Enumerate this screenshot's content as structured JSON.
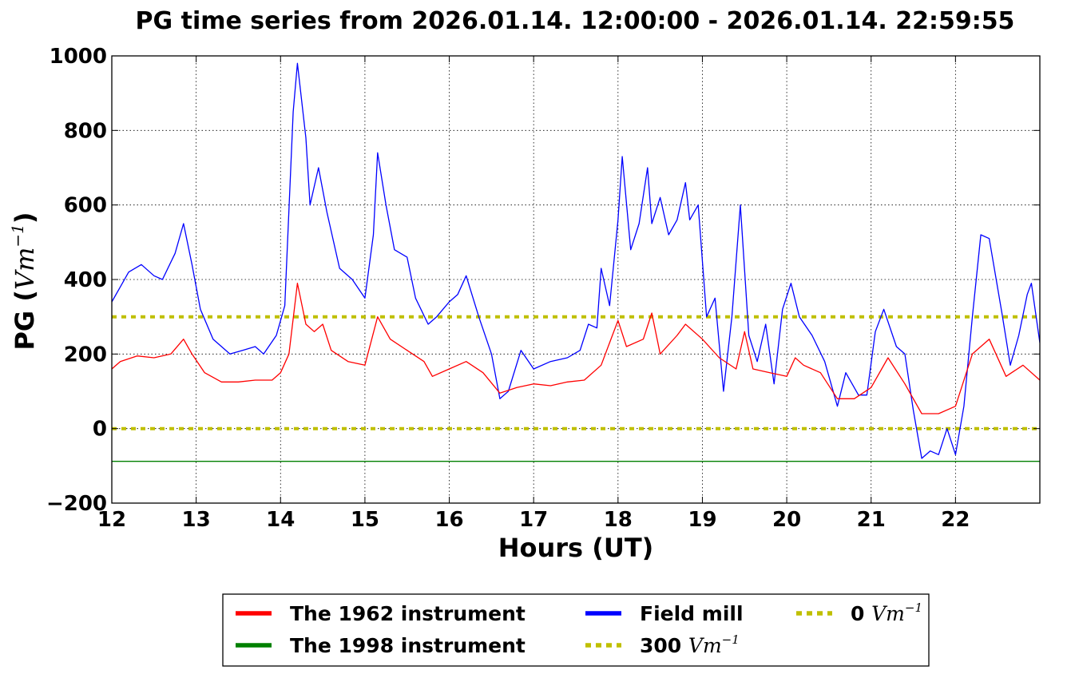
{
  "chart_data": {
    "type": "line",
    "title": "PG time series from 2026.01.14. 12:00:00 - 2026.01.14. 22:59:55",
    "xlabel": "Hours (UT)",
    "ylabel": "PG",
    "ylabel_unit": "Vm",
    "ylabel_exp": "−1",
    "xlim": [
      12,
      23
    ],
    "ylim": [
      -200,
      1000
    ],
    "xticks": [
      12,
      13,
      14,
      15,
      16,
      17,
      18,
      19,
      20,
      21,
      22
    ],
    "xtick_labels": [
      "12",
      "13",
      "14",
      "15",
      "16",
      "17",
      "18",
      "19",
      "20",
      "21",
      "22"
    ],
    "yticks": [
      -200,
      0,
      200,
      400,
      600,
      800,
      1000
    ],
    "ytick_labels": [
      "−200",
      "0",
      "200",
      "400",
      "600",
      "800",
      "1000"
    ],
    "grid": true,
    "legend_position": "bottom-center (below plot)",
    "series": [
      {
        "name": "The 1962 instrument",
        "color": "#ff0000",
        "x": [
          12.0,
          12.1,
          12.3,
          12.5,
          12.7,
          12.85,
          12.95,
          13.1,
          13.3,
          13.5,
          13.7,
          13.9,
          14.0,
          14.1,
          14.2,
          14.3,
          14.4,
          14.5,
          14.6,
          14.8,
          15.0,
          15.15,
          15.3,
          15.5,
          15.7,
          15.8,
          16.0,
          16.2,
          16.4,
          16.6,
          16.8,
          17.0,
          17.2,
          17.4,
          17.6,
          17.8,
          18.0,
          18.1,
          18.3,
          18.4,
          18.5,
          18.7,
          18.8,
          19.0,
          19.2,
          19.4,
          19.5,
          19.6,
          19.8,
          20.0,
          20.1,
          20.2,
          20.4,
          20.6,
          20.8,
          21.0,
          21.2,
          21.4,
          21.6,
          21.8,
          22.0,
          22.2,
          22.4,
          22.6,
          22.8,
          23.0
        ],
        "y": [
          160,
          180,
          195,
          190,
          200,
          240,
          200,
          150,
          125,
          125,
          130,
          130,
          150,
          200,
          390,
          280,
          260,
          280,
          210,
          180,
          170,
          300,
          240,
          210,
          180,
          140,
          160,
          180,
          150,
          95,
          110,
          120,
          115,
          125,
          130,
          170,
          290,
          220,
          240,
          310,
          200,
          250,
          280,
          240,
          190,
          160,
          260,
          160,
          150,
          140,
          190,
          170,
          150,
          80,
          80,
          110,
          190,
          120,
          40,
          40,
          60,
          200,
          240,
          140,
          170,
          130
        ]
      },
      {
        "name": "The 1998 instrument",
        "color": "#008000",
        "x": [
          12.0,
          13.0,
          14.0,
          15.0,
          16.0,
          17.0,
          18.0,
          19.0,
          20.0,
          21.0,
          22.0,
          23.0
        ],
        "y": [
          -88,
          -88,
          -88,
          -88,
          -88,
          -88,
          -88,
          -88,
          -88,
          -88,
          -88,
          -88
        ]
      },
      {
        "name": "Field mill",
        "color": "#0000ff",
        "x": [
          12.0,
          12.1,
          12.2,
          12.35,
          12.5,
          12.6,
          12.75,
          12.85,
          12.95,
          13.05,
          13.2,
          13.4,
          13.55,
          13.7,
          13.8,
          13.95,
          14.05,
          14.15,
          14.2,
          14.3,
          14.35,
          14.45,
          14.55,
          14.7,
          14.85,
          15.0,
          15.1,
          15.15,
          15.25,
          15.35,
          15.5,
          15.6,
          15.75,
          15.85,
          16.0,
          16.1,
          16.2,
          16.35,
          16.5,
          16.6,
          16.7,
          16.85,
          17.0,
          17.2,
          17.4,
          17.55,
          17.65,
          17.75,
          17.8,
          17.9,
          18.0,
          18.05,
          18.15,
          18.25,
          18.35,
          18.4,
          18.5,
          18.6,
          18.7,
          18.8,
          18.85,
          18.95,
          19.05,
          19.15,
          19.25,
          19.35,
          19.45,
          19.55,
          19.65,
          19.75,
          19.85,
          19.95,
          20.05,
          20.15,
          20.3,
          20.45,
          20.6,
          20.7,
          20.85,
          20.95,
          21.05,
          21.15,
          21.3,
          21.4,
          21.5,
          21.6,
          21.7,
          21.8,
          21.9,
          22.0,
          22.1,
          22.2,
          22.3,
          22.4,
          22.55,
          22.65,
          22.75,
          22.85,
          22.9,
          23.0
        ],
        "y": [
          340,
          380,
          420,
          440,
          410,
          400,
          470,
          550,
          440,
          320,
          240,
          200,
          210,
          220,
          200,
          250,
          330,
          850,
          980,
          780,
          600,
          700,
          580,
          430,
          400,
          350,
          520,
          740,
          600,
          480,
          460,
          350,
          280,
          300,
          340,
          360,
          410,
          300,
          200,
          80,
          100,
          210,
          160,
          180,
          190,
          210,
          280,
          270,
          430,
          330,
          560,
          730,
          480,
          550,
          700,
          550,
          620,
          520,
          560,
          660,
          560,
          600,
          300,
          350,
          100,
          300,
          600,
          250,
          180,
          280,
          120,
          320,
          390,
          300,
          250,
          180,
          60,
          150,
          90,
          90,
          260,
          320,
          220,
          200,
          50,
          -80,
          -60,
          -70,
          0,
          -70,
          60,
          300,
          520,
          510,
          310,
          170,
          250,
          360,
          390,
          230
        ]
      },
      {
        "name": "300 Vm⁻¹",
        "color": "#bfbf00",
        "x": [
          12.0,
          23.0
        ],
        "y": [
          300,
          300
        ]
      },
      {
        "name": "0 Vm⁻¹",
        "color": "#bfbf00",
        "x": [
          12.0,
          23.0
        ],
        "y": [
          0,
          0
        ]
      }
    ],
    "legend": {
      "entries": [
        {
          "label": "The 1962 instrument",
          "unit": "",
          "exp": "",
          "color": "#ff0000",
          "style": "solid"
        },
        {
          "label": "The 1998 instrument",
          "unit": "",
          "exp": "",
          "color": "#008000",
          "style": "solid"
        },
        {
          "label": "Field mill",
          "unit": "",
          "exp": "",
          "color": "#0000ff",
          "style": "solid"
        },
        {
          "label": "300 ",
          "unit": "Vm",
          "exp": "−1",
          "color": "#bfbf00",
          "style": "dashed"
        },
        {
          "label": "0 ",
          "unit": "Vm",
          "exp": "−1",
          "color": "#bfbf00",
          "style": "dashed"
        }
      ]
    }
  }
}
